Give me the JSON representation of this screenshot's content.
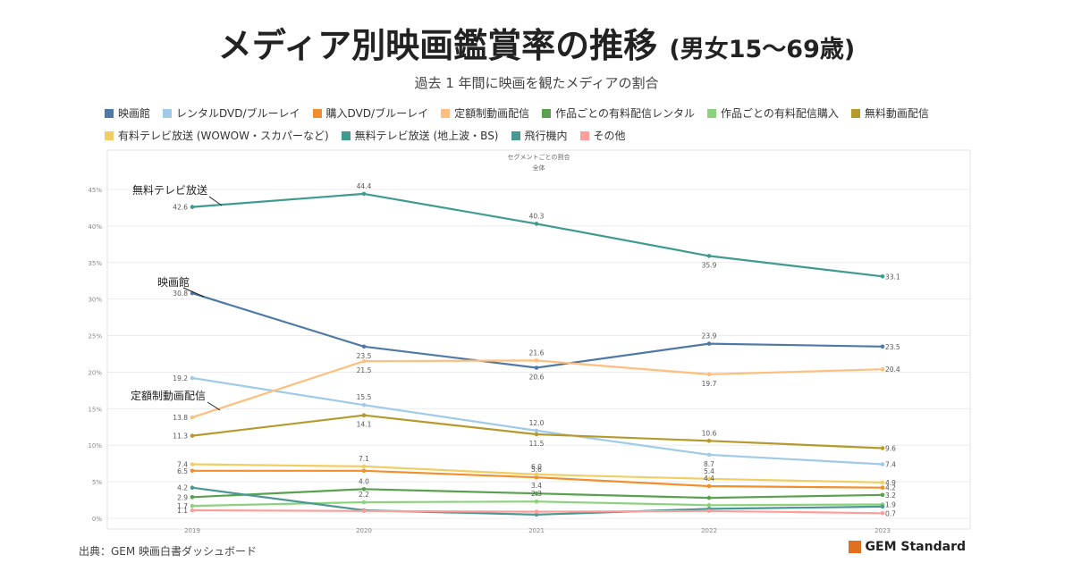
{
  "header": {
    "title": "メディア別映画鑑賞率の推移",
    "title_suffix": "(男女15～69歳)",
    "subtitle": "過去 1 年間に映画を観たメディアの割合"
  },
  "footer": {
    "source": "出典：GEM 映画白書ダッシュボード",
    "brand": "GEM Standard"
  },
  "chart_data": {
    "type": "line",
    "inner_title": "セグメントごとの割合",
    "inner_subtitle": "全体",
    "x": [
      "2019",
      "2020",
      "2021",
      "2022",
      "2023"
    ],
    "y_ticks": [
      "0%",
      "5%",
      "10%",
      "15%",
      "20%",
      "25%",
      "30%",
      "35%",
      "40%",
      "45%"
    ],
    "ylim": [
      0,
      45
    ],
    "grid": true,
    "legend_position": "top",
    "series": [
      {
        "name": "映画館",
        "color": "#4e79a7",
        "values": [
          30.8,
          23.5,
          20.6,
          23.9,
          23.5
        ],
        "labels": [
          "30.8",
          "23.5",
          "20.6",
          "23.9",
          "23.5"
        ]
      },
      {
        "name": "レンタルDVD/ブルーレイ",
        "color": "#a0cbe8",
        "values": [
          19.2,
          15.5,
          12.0,
          8.7,
          7.4
        ],
        "labels": [
          "19.2",
          "15.5",
          "12.0",
          "8.7",
          "7.4"
        ]
      },
      {
        "name": "購入DVD/ブルーレイ",
        "color": "#f28e2b",
        "values": [
          6.5,
          6.5,
          5.6,
          4.4,
          4.2
        ],
        "labels": [
          "6.5",
          "",
          "5.6",
          "4.4",
          "4.2"
        ]
      },
      {
        "name": "定額制動画配信",
        "color": "#ffbe7d",
        "values": [
          13.8,
          21.5,
          21.6,
          19.7,
          20.4
        ],
        "labels": [
          "13.8",
          "21.5",
          "21.6",
          "19.7",
          "20.4"
        ]
      },
      {
        "name": "作品ごとの有料配信レンタル",
        "color": "#59a14f",
        "values": [
          2.9,
          4.0,
          3.4,
          2.8,
          3.2
        ],
        "labels": [
          "2.9",
          "4.0",
          "3.4",
          "",
          "3.2"
        ]
      },
      {
        "name": "作品ごとの有料配信購入",
        "color": "#8cd17d",
        "values": [
          1.7,
          2.2,
          2.3,
          1.8,
          1.9
        ],
        "labels": [
          "1.7",
          "2.2",
          "2.3",
          "",
          "1.9"
        ]
      },
      {
        "name": "無料動画配信",
        "color": "#b6992d",
        "values": [
          11.3,
          14.1,
          11.5,
          10.6,
          9.6
        ],
        "labels": [
          "11.3",
          "14.1",
          "11.5",
          "10.6",
          "9.6"
        ]
      },
      {
        "name": "有料テレビ放送 (WOWOW・スカパーなど)",
        "color": "#f1ce63",
        "values": [
          7.4,
          7.1,
          6.0,
          5.4,
          4.9
        ],
        "labels": [
          "7.4",
          "7.1",
          "6.0",
          "5.4",
          "4.9"
        ]
      },
      {
        "name": "無料テレビ放送 (地上波・BS)",
        "color": "#3f9a8f",
        "values": [
          42.6,
          44.4,
          40.3,
          35.9,
          33.1
        ],
        "labels": [
          "42.6",
          "44.4",
          "40.3",
          "35.9",
          "33.1"
        ]
      },
      {
        "name": "飛行機内",
        "color": "#499894",
        "values": [
          4.2,
          1.1,
          0.5,
          1.3,
          1.6
        ],
        "labels": [
          "4.2",
          "",
          "",
          "",
          ""
        ]
      },
      {
        "name": "その他",
        "color": "#ff9d9a",
        "values": [
          1.1,
          1.0,
          0.9,
          1.0,
          0.7
        ],
        "labels": [
          "1.1",
          "",
          "",
          "",
          "0.7"
        ]
      }
    ],
    "annotations": [
      {
        "text": "無料テレビ放送",
        "series": "無料テレビ放送 (地上波・BS)"
      },
      {
        "text": "映画館",
        "series": "映画館"
      },
      {
        "text": "定額制動画配信",
        "series": "定額制動画配信"
      }
    ]
  }
}
